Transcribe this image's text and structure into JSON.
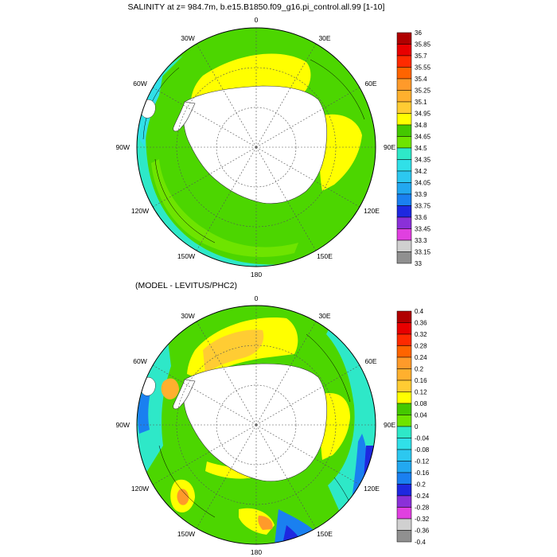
{
  "maps": [
    {
      "title": "SALINITY at z= 984.7m, b.e15.B1850.f09_g16.pi_control.all.99 [1-10]",
      "colorbar_labels": [
        "36",
        "35.85",
        "35.7",
        "35.55",
        "35.4",
        "35.25",
        "35.1",
        "34.95",
        "34.8",
        "34.65",
        "34.5",
        "34.35",
        "34.2",
        "34.05",
        "33.9",
        "33.75",
        "33.6",
        "33.45",
        "33.3",
        "33.15",
        "33"
      ],
      "colorbar_colors": [
        "#b00000",
        "#e80000",
        "#ff2a00",
        "#ff6400",
        "#ff9a2a",
        "#ffb02e",
        "#ffcc33",
        "#ffff00",
        "#44c800",
        "#6ee400",
        "#2ee8c8",
        "#30e0e8",
        "#2cc8f0",
        "#22a8f0",
        "#1a80f0",
        "#1e28e0",
        "#8a30d8",
        "#e040e0",
        "#d0d0d0",
        "#909090"
      ]
    },
    {
      "title": "(MODEL - LEVITUS/PHC2)",
      "colorbar_labels": [
        "0.4",
        "0.36",
        "0.32",
        "0.28",
        "0.24",
        "0.2",
        "0.16",
        "0.12",
        "0.08",
        "0.04",
        "0",
        "-0.04",
        "-0.08",
        "-0.12",
        "-0.16",
        "-0.2",
        "-0.24",
        "-0.28",
        "-0.32",
        "-0.36",
        "-0.4"
      ],
      "colorbar_colors": [
        "#b00000",
        "#e80000",
        "#ff2a00",
        "#ff6400",
        "#ff9a2a",
        "#ffb02e",
        "#ffcc33",
        "#ffff00",
        "#44c800",
        "#6ee400",
        "#2ee8c8",
        "#30e0e8",
        "#2cc8f0",
        "#22a8f0",
        "#1a80f0",
        "#1e28e0",
        "#8a30d8",
        "#e040e0",
        "#d0d0d0",
        "#909090"
      ]
    }
  ],
  "lon_labels": [
    "0",
    "30E",
    "60E",
    "90E",
    "120E",
    "150E",
    "180",
    "150W",
    "120W",
    "90W",
    "60W",
    "30W"
  ]
}
